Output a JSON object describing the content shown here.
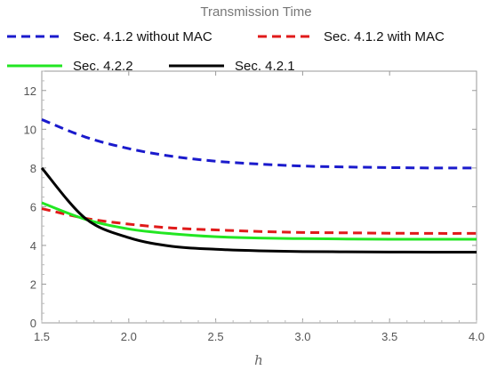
{
  "chart_data": {
    "type": "line",
    "title": "Transmission Time",
    "xlabel": "h",
    "ylabel": "",
    "xlim": [
      1.5,
      4.0
    ],
    "ylim": [
      0,
      13
    ],
    "x_ticks": [
      "1.5",
      "2.0",
      "2.5",
      "3.0",
      "3.5",
      "4.0"
    ],
    "y_ticks": [
      "0",
      "2",
      "4",
      "6",
      "8",
      "10",
      "12"
    ],
    "grid": false,
    "legend_position": "top",
    "x": [
      1.5,
      1.75,
      2.0,
      2.25,
      2.5,
      2.75,
      3.0,
      3.25,
      3.5,
      3.75,
      4.0
    ],
    "series": [
      {
        "name": "Sec. 4.1.2 without MAC",
        "color": "#1a1acc",
        "dash": "dashed",
        "values": [
          10.5,
          9.6,
          9.0,
          8.6,
          8.35,
          8.2,
          8.1,
          8.05,
          8.02,
          8.0,
          8.0
        ]
      },
      {
        "name": "Sec. 4.1.2 with MAC",
        "color": "#e01a1a",
        "dash": "dashed",
        "values": [
          5.9,
          5.4,
          5.1,
          4.9,
          4.8,
          4.72,
          4.67,
          4.65,
          4.63,
          4.62,
          4.62
        ]
      },
      {
        "name": "Sec. 4.2.2",
        "color": "#22e622",
        "dash": "solid",
        "values": [
          6.2,
          5.35,
          4.85,
          4.6,
          4.45,
          4.38,
          4.35,
          4.33,
          4.32,
          4.32,
          4.32
        ]
      },
      {
        "name": "Sec. 4.2.1",
        "color": "#000000",
        "dash": "solid",
        "values": [
          8.0,
          5.4,
          4.4,
          3.95,
          3.8,
          3.72,
          3.68,
          3.67,
          3.66,
          3.65,
          3.65
        ]
      }
    ]
  }
}
